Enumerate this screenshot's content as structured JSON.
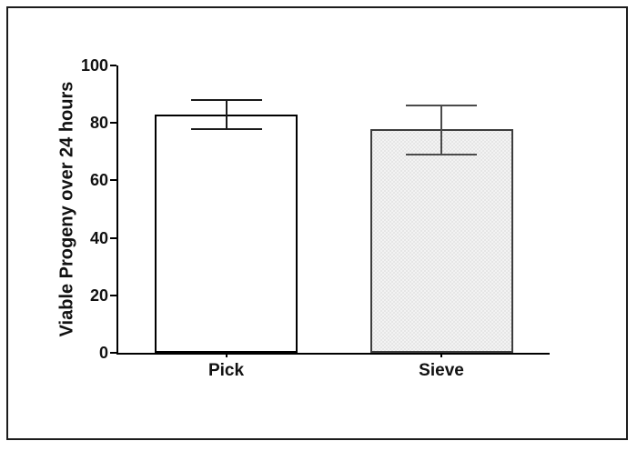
{
  "figure": {
    "background": "#ffffff",
    "border_color": "#1c1c1c"
  },
  "chart_data": {
    "type": "bar",
    "title": "",
    "xlabel": "",
    "ylabel": "Viable Progeny over 24 hours",
    "categories": [
      "Pick",
      "Sieve"
    ],
    "values": [
      83,
      78
    ],
    "error_low": [
      78,
      69
    ],
    "error_high": [
      88,
      86
    ],
    "ylim": [
      0,
      100
    ],
    "yticks": [
      0,
      20,
      40,
      60,
      80,
      100
    ],
    "grid": false,
    "legend_position": "none",
    "axis_color": "#000000",
    "bar_styles": [
      {
        "fill": "#ffffff",
        "stroke": "#000000",
        "pattern": "none",
        "error_color": "#1a1a1a"
      },
      {
        "fill": "#f3f3f3",
        "stroke": "#3d3d3d",
        "pattern": "stipple",
        "error_color": "#4a4a4a"
      }
    ]
  }
}
